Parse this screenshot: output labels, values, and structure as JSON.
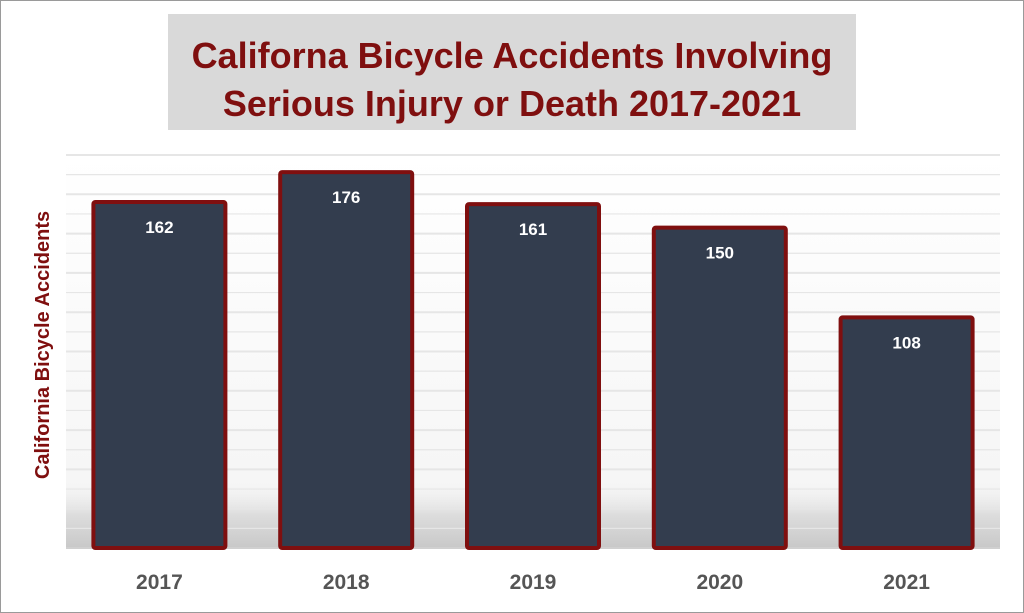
{
  "chart_data": {
    "type": "bar",
    "title_line1": "Californa Bicycle Accidents Involving",
    "title_line2": "Serious Injury or Death 2017-2021",
    "ylabel": "California Bicycle Accidents",
    "xlabel": "",
    "categories": [
      "2017",
      "2018",
      "2019",
      "2020",
      "2021"
    ],
    "values": [
      162,
      176,
      161,
      150,
      108
    ],
    "ylim": [
      0,
      184
    ],
    "grid": true,
    "bar_fill": "#333d4e",
    "bar_border": "#7f0f0f",
    "title_color": "#7f0f0f",
    "label_color": "#ffffff",
    "tick_color": "#555555"
  }
}
